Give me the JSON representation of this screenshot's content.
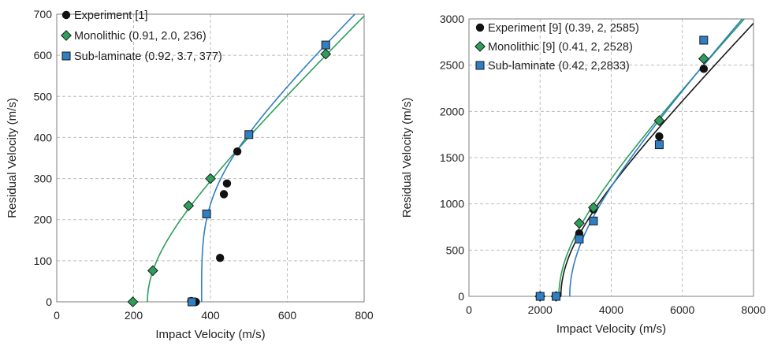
{
  "chart_data": [
    {
      "type": "scatter",
      "xlabel": "Impact Velocity (m/s)",
      "ylabel": "Residual Velocity (m/s)",
      "xlim": [
        0,
        800
      ],
      "ylim": [
        0,
        700
      ],
      "xticks": [
        0,
        200,
        400,
        600,
        800
      ],
      "yticks": [
        0,
        100,
        200,
        300,
        400,
        500,
        600,
        700
      ],
      "grid": true,
      "legend_position": "top-left",
      "series": [
        {
          "name": "Experiment [1]",
          "marker": "circle",
          "color": "#111111",
          "points": [
            [
              350,
              2
            ],
            [
              362,
              0
            ],
            [
              425,
              107
            ],
            [
              435,
              262
            ],
            [
              443,
              288
            ],
            [
              470,
              366
            ]
          ]
        },
        {
          "name": "Monolithic (0.91, 2.0, 236)",
          "marker": "diamond",
          "color": "#2e9e5b",
          "points": [
            [
              198,
              0
            ],
            [
              250,
              76
            ],
            [
              343,
              234
            ],
            [
              400,
              300
            ],
            [
              700,
              603
            ]
          ],
          "curve": {
            "a": 0.91,
            "p": 2.0,
            "vbl": 236
          }
        },
        {
          "name": "Sub-laminate (0.92, 3.7, 377)",
          "marker": "square",
          "color": "#2f7fc4",
          "points": [
            [
              352,
              0
            ],
            [
              390,
              214
            ],
            [
              500,
              407
            ],
            [
              700,
              625
            ]
          ],
          "curve": {
            "a": 0.92,
            "p": 3.7,
            "vbl": 377
          }
        }
      ]
    },
    {
      "type": "scatter",
      "xlabel": "Impact Velocity (m/s)",
      "ylabel": "Residual Velocity (m/s)",
      "xlim": [
        0,
        8000
      ],
      "ylim": [
        0,
        3000
      ],
      "xticks": [
        0,
        2000,
        4000,
        6000,
        8000
      ],
      "yticks": [
        0,
        500,
        1000,
        1500,
        2000,
        2500,
        3000
      ],
      "grid": true,
      "legend_position": "top-left",
      "series": [
        {
          "name": "Experiment [9] (0.39, 2, 2585)",
          "marker": "circle",
          "color": "#111111",
          "points": [
            [
              2000,
              0
            ],
            [
              2450,
              0
            ],
            [
              3100,
              680
            ],
            [
              3500,
              940
            ],
            [
              5350,
              1730
            ],
            [
              6600,
              2460
            ]
          ],
          "curve": {
            "a": 0.39,
            "p": 2,
            "vbl": 2585
          }
        },
        {
          "name": "Monolithic [9] (0.41, 2, 2528)",
          "marker": "diamond",
          "color": "#2e9e5b",
          "points": [
            [
              2000,
              0
            ],
            [
              2450,
              0
            ],
            [
              3100,
              790
            ],
            [
              3500,
              960
            ],
            [
              5350,
              1900
            ],
            [
              6600,
              2570
            ]
          ],
          "curve": {
            "a": 0.41,
            "p": 2,
            "vbl": 2528
          }
        },
        {
          "name": "Sub-laminate (0.42, 2,2833)",
          "marker": "square",
          "color": "#2f7fc4",
          "points": [
            [
              2000,
              0
            ],
            [
              2450,
              0
            ],
            [
              3100,
              620
            ],
            [
              3500,
              815
            ],
            [
              5350,
              1640
            ],
            [
              6600,
              2770
            ]
          ],
          "curve": {
            "a": 0.42,
            "p": 2,
            "vbl": 2833
          }
        }
      ]
    }
  ]
}
